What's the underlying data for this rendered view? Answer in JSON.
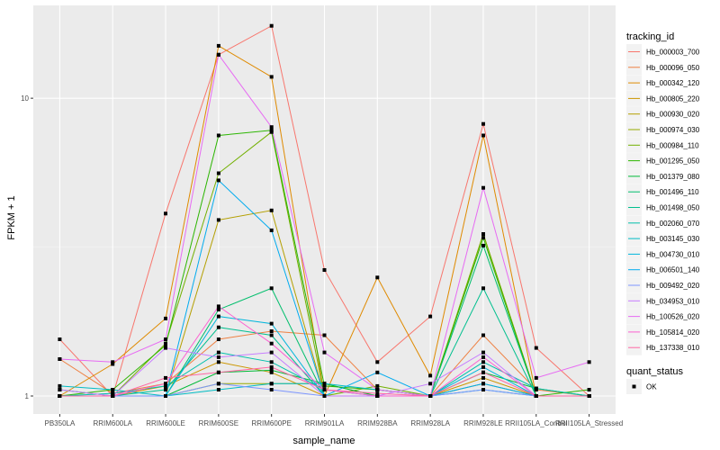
{
  "chart_data": {
    "type": "line",
    "xlabel": "sample_name",
    "ylabel": "FPKM + 1",
    "y_scale": "log10",
    "ylim": [
      0.87,
      20.5
    ],
    "y_ticks": [
      {
        "value": 1,
        "label": "1"
      },
      {
        "value": 10,
        "label": "10"
      }
    ],
    "grid": true,
    "categories": [
      "PB350LA",
      "RRIM600LA",
      "RRIM600LE",
      "RRIM600SE",
      "RRIM600PE",
      "RRIM901LA",
      "RRIM928BA",
      "RRIM928LA",
      "RRIM928LE",
      "RRII105LA_Control",
      "RRII105LA_Stressed"
    ],
    "series": [
      {
        "name": "Hb_000003_700",
        "color": "#F8766D",
        "values": [
          1.55,
          1.0,
          4.1,
          14.0,
          17.5,
          2.65,
          1.3,
          1.85,
          8.2,
          1.45,
          1.0
        ]
      },
      {
        "name": "Hb_000096_050",
        "color": "#EE8042",
        "values": [
          1.33,
          1.02,
          1.1,
          1.55,
          1.65,
          1.6,
          1.05,
          1.0,
          1.6,
          1.05,
          1.0
        ]
      },
      {
        "name": "Hb_000342_120",
        "color": "#DF8A00",
        "values": [
          1.0,
          1.28,
          1.82,
          15.0,
          11.8,
          1.0,
          2.5,
          1.17,
          7.5,
          1.0,
          1.0
        ]
      },
      {
        "name": "Hb_000805_220",
        "color": "#CC9600",
        "values": [
          1.0,
          1.0,
          1.08,
          1.3,
          1.2,
          1.0,
          1.0,
          1.0,
          1.15,
          1.0,
          1.0
        ]
      },
      {
        "name": "Hb_000930_020",
        "color": "#B49F00",
        "values": [
          1.0,
          1.0,
          1.0,
          3.9,
          4.2,
          1.0,
          1.0,
          1.0,
          3.5,
          1.0,
          1.0
        ]
      },
      {
        "name": "Hb_000974_030",
        "color": "#97A900",
        "values": [
          1.0,
          1.0,
          1.0,
          1.1,
          1.1,
          1.1,
          1.0,
          1.0,
          1.1,
          1.0,
          1.0
        ]
      },
      {
        "name": "Hb_000984_110",
        "color": "#72B000",
        "values": [
          1.0,
          1.0,
          1.5,
          5.6,
          7.7,
          1.0,
          1.08,
          1.0,
          3.5,
          1.0,
          1.0
        ]
      },
      {
        "name": "Hb_001295_050",
        "color": "#2BB600",
        "values": [
          1.0,
          1.05,
          1.48,
          7.5,
          7.8,
          1.08,
          1.05,
          1.0,
          3.4,
          1.0,
          1.05
        ]
      },
      {
        "name": "Hb_001379_080",
        "color": "#00BA38",
        "values": [
          1.05,
          1.0,
          1.0,
          1.2,
          1.22,
          1.1,
          1.0,
          1.0,
          1.2,
          1.06,
          1.0
        ]
      },
      {
        "name": "Hb_001496_110",
        "color": "#00BE6C",
        "values": [
          1.0,
          1.0,
          1.0,
          1.95,
          2.3,
          1.0,
          1.0,
          1.0,
          3.2,
          1.0,
          1.0
        ]
      },
      {
        "name": "Hb_001498_050",
        "color": "#00BF8E",
        "values": [
          1.0,
          1.0,
          1.05,
          1.7,
          1.6,
          1.0,
          1.0,
          1.0,
          2.3,
          1.0,
          1.0
        ]
      },
      {
        "name": "Hb_002060_070",
        "color": "#00BFAB",
        "values": [
          1.0,
          1.02,
          1.08,
          1.4,
          1.3,
          1.05,
          1.0,
          1.0,
          1.3,
          1.06,
          1.0
        ]
      },
      {
        "name": "Hb_003145_030",
        "color": "#00BCC4",
        "values": [
          1.08,
          1.05,
          1.0,
          1.05,
          1.1,
          1.1,
          1.05,
          1.0,
          1.05,
          1.0,
          1.0
        ]
      },
      {
        "name": "Hb_004730_010",
        "color": "#00B6DC",
        "values": [
          1.0,
          1.0,
          1.0,
          1.85,
          1.75,
          1.0,
          1.0,
          1.0,
          1.25,
          1.0,
          1.0
        ]
      },
      {
        "name": "Hb_006501_140",
        "color": "#00ABEF",
        "values": [
          1.0,
          1.0,
          1.0,
          5.3,
          3.6,
          1.0,
          1.2,
          1.0,
          1.1,
          1.0,
          1.0
        ]
      },
      {
        "name": "Hb_009492_020",
        "color": "#7D96FF",
        "values": [
          1.0,
          1.0,
          1.0,
          1.1,
          1.05,
          1.0,
          1.0,
          1.0,
          1.05,
          1.0,
          1.0
        ]
      },
      {
        "name": "Hb_034953_010",
        "color": "#C77CFF",
        "values": [
          1.05,
          1.0,
          1.45,
          1.35,
          1.4,
          1.0,
          1.0,
          1.1,
          1.4,
          1.0,
          1.0
        ]
      },
      {
        "name": "Hb_100526_020",
        "color": "#E76BF3",
        "values": [
          1.33,
          1.3,
          1.55,
          14.0,
          8.0,
          1.4,
          1.05,
          1.0,
          5.0,
          1.15,
          1.3
        ]
      },
      {
        "name": "Hb_105814_020",
        "color": "#FD61D1",
        "values": [
          1.0,
          1.0,
          1.1,
          2.0,
          1.5,
          1.05,
          1.0,
          1.0,
          1.35,
          1.0,
          1.0
        ]
      },
      {
        "name": "Hb_137338_010",
        "color": "#FF67A4",
        "values": [
          1.0,
          1.0,
          1.15,
          1.2,
          1.25,
          1.05,
          1.02,
          1.0,
          1.2,
          1.0,
          1.0
        ]
      }
    ],
    "legend": {
      "title": "tracking_id",
      "placement": "right"
    },
    "shape_legend": {
      "title": "quant_status",
      "items": [
        {
          "label": "OK",
          "shape": "square"
        }
      ]
    }
  }
}
